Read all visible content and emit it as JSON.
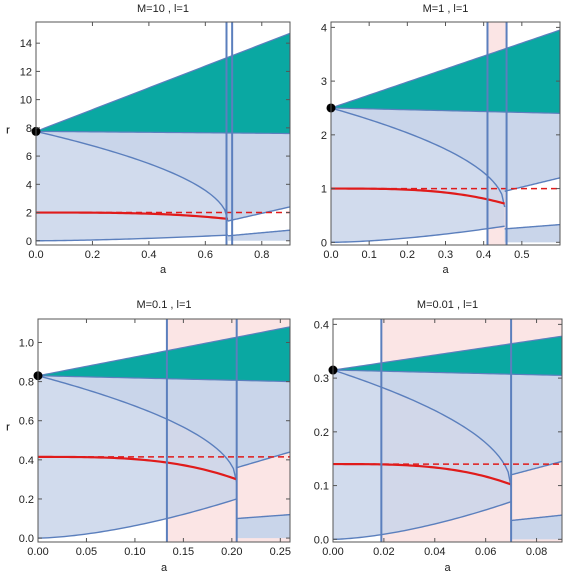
{
  "chart_data": [
    {
      "type": "area",
      "title": "M=10 , l=1",
      "xlabel": "a",
      "ylabel": "r",
      "xlim": [
        0,
        0.9
      ],
      "ylim": [
        -0.3,
        15.5
      ],
      "xticks": [
        0.0,
        0.2,
        0.4,
        0.6,
        0.8
      ],
      "xtick_labels": [
        "0.0",
        "0.2",
        "0.4",
        "0.6",
        "0.8"
      ],
      "yticks": [
        0,
        2,
        4,
        6,
        8,
        10,
        12,
        14
      ],
      "ytick_labels": [
        "0",
        "2",
        "4",
        "6",
        "8",
        "10",
        "12",
        "14"
      ],
      "critical_a": 0.68,
      "vlines": [
        0.675,
        0.695
      ],
      "shaded_band": null,
      "black_point": {
        "x": 0.0,
        "y": 7.75
      },
      "teal_region": {
        "top_start": 7.75,
        "top_end": 14.7,
        "bottom_start": 7.75,
        "bottom_end": 7.6
      },
      "blue_upper_boundary": {
        "start": 7.75,
        "end": 2.3
      },
      "red_solid": {
        "start": 2.0,
        "end_at_critical": 1.55
      },
      "red_dashed_level": 2.0,
      "lower_branch": {
        "end_at_critical": 0.4
      },
      "post_critical": {
        "upper_start": 1.4,
        "upper_end": 2.4,
        "lower_start": 0.35,
        "lower_end": 0.75
      }
    },
    {
      "type": "area",
      "title": "M=1 , l=1",
      "xlabel": "a",
      "ylabel": "r",
      "xlim": [
        0,
        0.6
      ],
      "ylim": [
        -0.05,
        4.1
      ],
      "xticks": [
        0.0,
        0.1,
        0.2,
        0.3,
        0.4,
        0.5
      ],
      "xtick_labels": [
        "0.0",
        "0.1",
        "0.2",
        "0.3",
        "0.4",
        "0.5"
      ],
      "yticks": [
        0,
        1,
        2,
        3,
        4
      ],
      "ytick_labels": [
        "0",
        "1",
        "2",
        "3",
        "4"
      ],
      "critical_a": 0.455,
      "vlines": [
        0.41,
        0.46
      ],
      "shaded_band": [
        0.41,
        0.46
      ],
      "black_point": {
        "x": 0.0,
        "y": 2.5
      },
      "teal_region": {
        "top_start": 2.5,
        "top_end": 3.95,
        "bottom_start": 2.5,
        "bottom_end": 2.4
      },
      "blue_upper_boundary": {
        "start": 2.5,
        "end": 0.6
      },
      "red_solid": {
        "start": 1.0,
        "end_at_critical": 0.72
      },
      "red_dashed_level": 1.0,
      "lower_branch": {
        "end_at_critical": 0.3
      },
      "post_critical": {
        "upper_start": 0.95,
        "upper_end": 1.2,
        "lower_start": 0.25,
        "lower_end": 0.33
      }
    },
    {
      "type": "area",
      "title": "M=0.1 , l=1",
      "xlabel": "a",
      "ylabel": "r",
      "xlim": [
        0,
        0.26
      ],
      "ylim": [
        -0.02,
        1.12
      ],
      "xticks": [
        0.0,
        0.05,
        0.1,
        0.15,
        0.2,
        0.25
      ],
      "xtick_labels": [
        "0.00",
        "0.05",
        "0.10",
        "0.15",
        "0.20",
        "0.25"
      ],
      "yticks": [
        0.0,
        0.2,
        0.4,
        0.6,
        0.8,
        1.0
      ],
      "ytick_labels": [
        "0.0",
        "0.2",
        "0.4",
        "0.6",
        "0.8",
        "1.0"
      ],
      "critical_a": 0.205,
      "vlines": [
        0.133,
        0.205
      ],
      "shaded_band": [
        0.133,
        0.26
      ],
      "black_point": {
        "x": 0.0,
        "y": 0.83
      },
      "teal_region": {
        "top_start": 0.83,
        "top_end": 1.08,
        "bottom_start": 0.83,
        "bottom_end": 0.8
      },
      "blue_upper_boundary": {
        "start": 0.83,
        "end": 0.33
      },
      "red_solid": {
        "start": 0.415,
        "end_at_critical": 0.3
      },
      "red_dashed_level": 0.415,
      "lower_branch": {
        "end_at_critical": 0.2
      },
      "post_critical": {
        "upper_start": 0.36,
        "upper_end": 0.44,
        "lower_start": 0.1,
        "lower_end": 0.12
      }
    },
    {
      "type": "area",
      "title": "M=0.01 , l=1",
      "xlabel": "a",
      "ylabel": "r",
      "xlim": [
        0,
        0.09
      ],
      "ylim": [
        -0.005,
        0.41
      ],
      "xticks": [
        0.0,
        0.02,
        0.04,
        0.06,
        0.08
      ],
      "xtick_labels": [
        "0.00",
        "0.02",
        "0.04",
        "0.06",
        "0.08"
      ],
      "yticks": [
        0.0,
        0.1,
        0.2,
        0.3,
        0.4
      ],
      "ytick_labels": [
        "0.0",
        "0.1",
        "0.2",
        "0.3",
        "0.4"
      ],
      "critical_a": 0.07,
      "vlines": [
        0.019,
        0.07
      ],
      "shaded_band": [
        0.019,
        0.09
      ],
      "black_point": {
        "x": 0.0,
        "y": 0.315
      },
      "teal_region": {
        "top_start": 0.315,
        "top_end": 0.378,
        "bottom_start": 0.315,
        "bottom_end": 0.305
      },
      "blue_upper_boundary": {
        "start": 0.315,
        "end": 0.12
      },
      "red_solid": {
        "start": 0.14,
        "end_at_critical": 0.102
      },
      "red_dashed_level": 0.14,
      "lower_branch": {
        "end_at_critical": 0.07
      },
      "post_critical": {
        "upper_start": 0.12,
        "upper_end": 0.145,
        "lower_start": 0.035,
        "lower_end": 0.045
      }
    }
  ],
  "colors": {
    "teal": "#0aa8a2",
    "blue_fill": "#c9d5ea",
    "blue_line": "#5b7fbd",
    "pink_band": "#fbe5e5",
    "red": "#e01b1b",
    "frame": "#555555",
    "point": "#000000"
  }
}
